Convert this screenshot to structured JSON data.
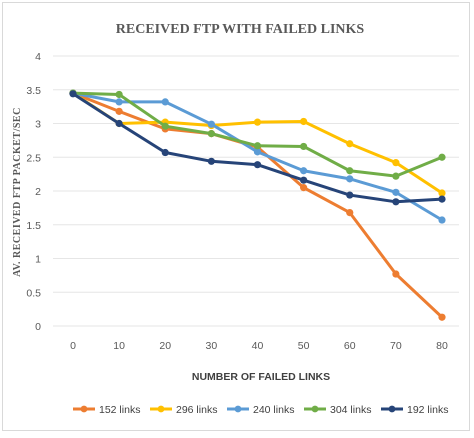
{
  "chart_data": {
    "type": "line",
    "title": "RECEIVED FTP WITH FAILED LINKS",
    "xlabel": "NUMBER OF FAILED LINKS",
    "ylabel": "AV. RECEIVED FTP PACKET/SEC",
    "x": [
      0,
      10,
      20,
      30,
      40,
      50,
      60,
      70,
      80
    ],
    "x_tick_labels": [
      "0",
      "10",
      "20",
      "30",
      "40",
      "50",
      "60",
      "70",
      "80"
    ],
    "ylim": [
      0,
      4
    ],
    "y_ticks": [
      0,
      0.5,
      1,
      1.5,
      2,
      2.5,
      3,
      3.5,
      4
    ],
    "y_tick_labels": [
      "0",
      "0.5",
      "1",
      "1.5",
      "2",
      "2.5",
      "3",
      "3.5",
      "4"
    ],
    "grid": true,
    "legend_position": "bottom",
    "series": [
      {
        "name": "152 links",
        "color": "#ed7d31",
        "values": [
          3.45,
          3.18,
          2.92,
          2.85,
          2.65,
          2.05,
          1.68,
          0.77,
          0.13
        ]
      },
      {
        "name": "296 links",
        "color": "#ffc000",
        "values": [
          3.45,
          3.0,
          3.02,
          2.97,
          3.02,
          3.03,
          2.7,
          2.42,
          1.97
        ]
      },
      {
        "name": "240 links",
        "color": "#5b9bd5",
        "values": [
          3.45,
          3.32,
          3.32,
          2.99,
          2.58,
          2.3,
          2.18,
          1.98,
          1.57
        ]
      },
      {
        "name": "304 links",
        "color": "#70ad47",
        "values": [
          3.45,
          3.43,
          2.96,
          2.85,
          2.67,
          2.66,
          2.3,
          2.22,
          2.5
        ]
      },
      {
        "name": "192 links",
        "color": "#264478",
        "values": [
          3.44,
          3.0,
          2.57,
          2.44,
          2.39,
          2.16,
          1.94,
          1.84,
          1.88
        ]
      }
    ]
  }
}
